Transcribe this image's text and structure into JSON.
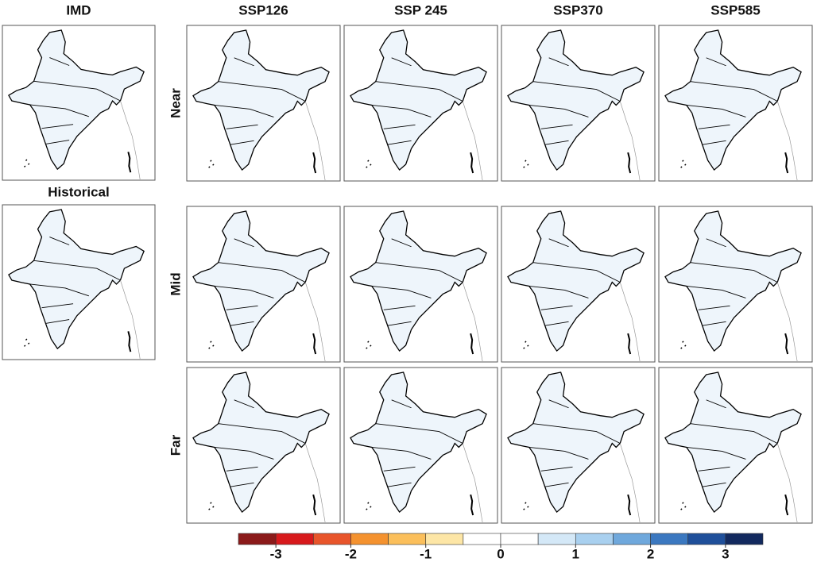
{
  "left_panels": [
    {
      "title": "IMD"
    },
    {
      "title": "Historical"
    }
  ],
  "columns": [
    "SSP126",
    "SSP 245",
    "SSP370",
    "SSP585"
  ],
  "rows": [
    "Near",
    "Mid",
    "Far"
  ],
  "colorbar": {
    "colors": [
      "#8b1a1a",
      "#d7191c",
      "#e8552b",
      "#f4922f",
      "#fbbf5b",
      "#fde6a6",
      "#ffffff",
      "#ffffff",
      "#d4e8f7",
      "#a9d0ef",
      "#6fa8dc",
      "#3b78c0",
      "#1f4f9a",
      "#12295e"
    ],
    "ticks": [
      -3,
      -2,
      -1,
      0,
      1,
      2,
      3
    ]
  }
}
